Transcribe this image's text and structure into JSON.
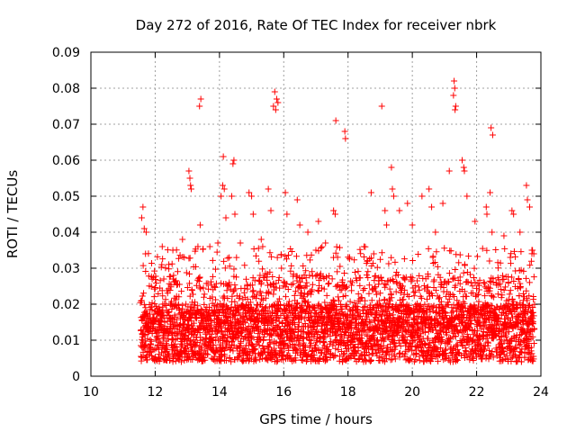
{
  "chart_data": {
    "type": "scatter",
    "title": "Day 272 of 2016, Rate Of TEC Index for receiver nbrk",
    "xlabel": "GPS time / hours",
    "ylabel": "ROTI / TECUs",
    "xlim": [
      10,
      24
    ],
    "ylim": [
      0,
      0.09
    ],
    "xticks": [
      "10",
      "12",
      "14",
      "16",
      "18",
      "20",
      "22",
      "24"
    ],
    "yticks": [
      "0",
      "0.01",
      "0.02",
      "0.03",
      "0.04",
      "0.05",
      "0.06",
      "0.07",
      "0.08",
      "0.09"
    ],
    "grid": true,
    "marker": "+",
    "series_color": "#ff0000",
    "data_range_hours": [
      11.55,
      23.8
    ],
    "points": [
      [
        11.62,
        0.047
      ],
      [
        11.66,
        0.041
      ],
      [
        11.72,
        0.04
      ],
      [
        11.58,
        0.044
      ],
      [
        11.7,
        0.034
      ],
      [
        12.22,
        0.036
      ],
      [
        12.55,
        0.035
      ],
      [
        12.85,
        0.038
      ],
      [
        13.05,
        0.057
      ],
      [
        13.08,
        0.055
      ],
      [
        13.1,
        0.053
      ],
      [
        13.12,
        0.052
      ],
      [
        13.33,
        0.036
      ],
      [
        13.38,
        0.075
      ],
      [
        13.42,
        0.077
      ],
      [
        13.4,
        0.042
      ],
      [
        13.7,
        0.036
      ],
      [
        13.95,
        0.037
      ],
      [
        14.12,
        0.061
      ],
      [
        14.1,
        0.053
      ],
      [
        14.15,
        0.052
      ],
      [
        14.05,
        0.05
      ],
      [
        14.2,
        0.044
      ],
      [
        14.45,
        0.06
      ],
      [
        14.42,
        0.059
      ],
      [
        14.38,
        0.05
      ],
      [
        14.48,
        0.045
      ],
      [
        14.65,
        0.037
      ],
      [
        14.92,
        0.051
      ],
      [
        15.0,
        0.05
      ],
      [
        15.05,
        0.045
      ],
      [
        15.3,
        0.038
      ],
      [
        15.52,
        0.052
      ],
      [
        15.6,
        0.046
      ],
      [
        15.72,
        0.079
      ],
      [
        15.78,
        0.077
      ],
      [
        15.82,
        0.076
      ],
      [
        15.75,
        0.074
      ],
      [
        15.68,
        0.075
      ],
      [
        16.05,
        0.051
      ],
      [
        16.1,
        0.045
      ],
      [
        16.42,
        0.049
      ],
      [
        16.5,
        0.042
      ],
      [
        16.75,
        0.04
      ],
      [
        17.08,
        0.043
      ],
      [
        17.3,
        0.037
      ],
      [
        17.55,
        0.046
      ],
      [
        17.6,
        0.045
      ],
      [
        17.62,
        0.071
      ],
      [
        17.9,
        0.068
      ],
      [
        17.92,
        0.066
      ],
      [
        18.05,
        0.033
      ],
      [
        18.5,
        0.036
      ],
      [
        18.72,
        0.051
      ],
      [
        18.8,
        0.034
      ],
      [
        19.05,
        0.075
      ],
      [
        19.15,
        0.046
      ],
      [
        19.2,
        0.042
      ],
      [
        19.35,
        0.058
      ],
      [
        19.38,
        0.052
      ],
      [
        19.42,
        0.05
      ],
      [
        19.6,
        0.046
      ],
      [
        19.85,
        0.048
      ],
      [
        20.0,
        0.042
      ],
      [
        20.3,
        0.05
      ],
      [
        20.52,
        0.052
      ],
      [
        20.6,
        0.047
      ],
      [
        20.72,
        0.04
      ],
      [
        20.95,
        0.048
      ],
      [
        21.15,
        0.057
      ],
      [
        21.3,
        0.082
      ],
      [
        21.32,
        0.08
      ],
      [
        21.28,
        0.078
      ],
      [
        21.35,
        0.075
      ],
      [
        21.33,
        0.074
      ],
      [
        21.55,
        0.06
      ],
      [
        21.6,
        0.058
      ],
      [
        21.62,
        0.057
      ],
      [
        21.7,
        0.05
      ],
      [
        21.95,
        0.043
      ],
      [
        22.3,
        0.047
      ],
      [
        22.32,
        0.045
      ],
      [
        22.45,
        0.069
      ],
      [
        22.5,
        0.067
      ],
      [
        22.42,
        0.051
      ],
      [
        22.48,
        0.04
      ],
      [
        22.85,
        0.039
      ],
      [
        23.1,
        0.046
      ],
      [
        23.15,
        0.045
      ],
      [
        23.35,
        0.04
      ],
      [
        23.55,
        0.053
      ],
      [
        23.58,
        0.049
      ],
      [
        23.65,
        0.047
      ],
      [
        23.72,
        0.035
      ],
      [
        23.78,
        0.034
      ]
    ]
  }
}
